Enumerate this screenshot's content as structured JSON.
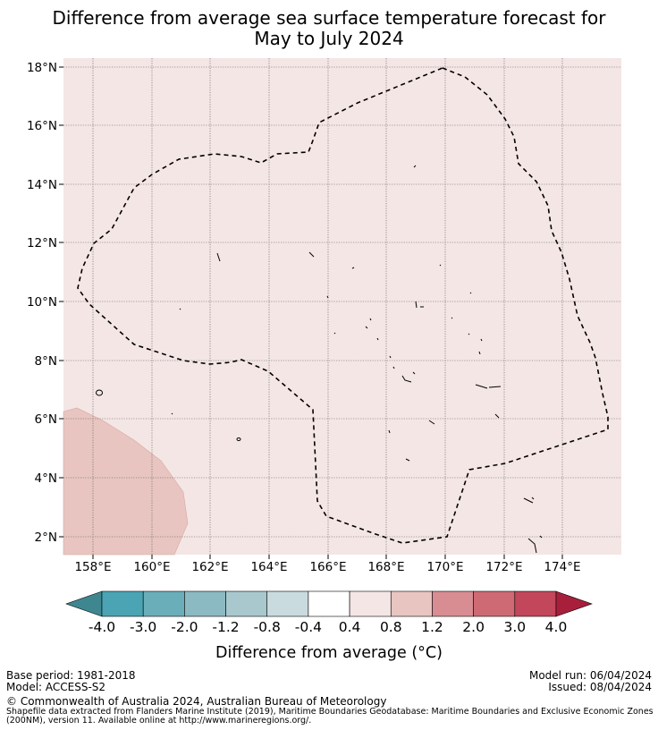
{
  "title_line1": "Difference from average sea surface temperature forecast for",
  "title_line2": "May to July 2024",
  "y_ticks": [
    "2°N",
    "4°N",
    "6°N",
    "8°N",
    "10°N",
    "12°N",
    "14°N",
    "16°N",
    "18°N"
  ],
  "x_ticks": [
    "158°E",
    "160°E",
    "162°E",
    "164°E",
    "166°E",
    "168°E",
    "170°E",
    "172°E",
    "174°E"
  ],
  "colorbar": {
    "labels": [
      "-4.0",
      "-3.0",
      "-2.0",
      "-1.2",
      "-0.8",
      "-0.4",
      "0.4",
      "0.8",
      "1.2",
      "2.0",
      "3.0",
      "4.0"
    ],
    "colors": [
      "#3f8790",
      "#4aa4b3",
      "#6aaeba",
      "#8cbac2",
      "#a8c8ce",
      "#c9dbde",
      "#ffffff",
      "#f4e6e5",
      "#e8c5c0",
      "#d88d93",
      "#cd6a74",
      "#c2475a",
      "#a81f3b"
    ],
    "title": "Difference from average (°C)"
  },
  "map_fill_color": "#f4e6e5",
  "anomaly_patch_color": "#e8c5c0",
  "footer": {
    "base_period": "Base period: 1981-2018",
    "model": "Model: ACCESS-S2",
    "model_run": "Model run: 06/04/2024",
    "issued": "Issued: 08/04/2024",
    "copyright": "© Commonwealth of Australia 2024, Australian Bureau of Meteorology",
    "shapefile_line1": "Shapefile data extracted from Flanders Marine Institute (2019), Maritime Boundaries Geodatabase: Maritime Boundaries and Exclusive Economic Zones",
    "shapefile_line2": "(200NM), version 11. Available online at http://www.marineregions.org/."
  }
}
